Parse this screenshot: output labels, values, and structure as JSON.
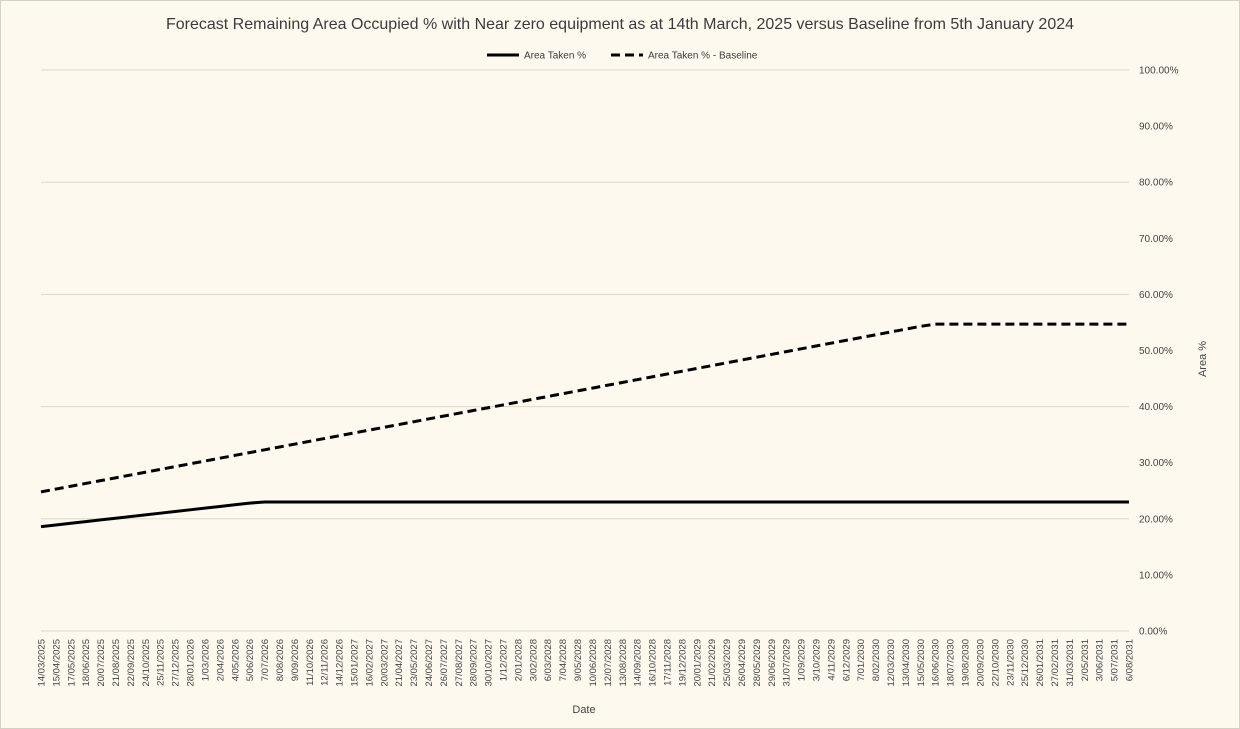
{
  "chart_data": {
    "type": "line",
    "title": "Forecast Remaining Area Occupied % with Near zero equipment as at 14th March, 2025 versus Baseline from 5th January 2024",
    "xlabel": "Date",
    "ylabel": "Area %",
    "ylim": [
      0,
      100
    ],
    "yticks": [
      "0.00%",
      "10.00%",
      "20.00%",
      "30.00%",
      "40.00%",
      "50.00%",
      "60.00%",
      "70.00%",
      "80.00%",
      "90.00%",
      "100.00%"
    ],
    "grid": true,
    "legend_position": "top",
    "categories": [
      "14/03/2025",
      "15/04/2025",
      "17/05/2025",
      "18/06/2025",
      "20/07/2025",
      "21/08/2025",
      "22/09/2025",
      "24/10/2025",
      "25/11/2025",
      "27/12/2025",
      "28/01/2026",
      "1/03/2026",
      "2/04/2026",
      "4/05/2026",
      "5/06/2026",
      "7/07/2026",
      "8/08/2026",
      "9/09/2026",
      "11/10/2026",
      "12/11/2026",
      "14/12/2026",
      "15/01/2027",
      "16/02/2027",
      "20/03/2027",
      "21/04/2027",
      "23/05/2027",
      "24/06/2027",
      "26/07/2027",
      "27/08/2027",
      "28/09/2027",
      "30/10/2027",
      "1/12/2027",
      "2/01/2028",
      "3/02/2028",
      "6/03/2028",
      "7/04/2028",
      "9/05/2028",
      "10/06/2028",
      "12/07/2028",
      "13/08/2028",
      "14/09/2028",
      "16/10/2028",
      "17/11/2028",
      "19/12/2028",
      "20/01/2029",
      "21/02/2029",
      "25/03/2029",
      "26/04/2029",
      "28/05/2029",
      "29/06/2029",
      "31/07/2029",
      "1/09/2029",
      "3/10/2029",
      "4/11/2029",
      "6/12/2029",
      "7/01/2030",
      "8/02/2030",
      "12/03/2030",
      "13/04/2030",
      "15/05/2030",
      "16/06/2030",
      "18/07/2030",
      "19/08/2030",
      "20/09/2030",
      "22/10/2030",
      "23/11/2030",
      "25/12/2030",
      "26/01/2031",
      "27/02/2031",
      "31/03/2031",
      "2/05/2031",
      "3/06/2031",
      "5/07/2031",
      "6/08/2031"
    ],
    "series": [
      {
        "name": "Area Taken %",
        "style": "solid",
        "color": "#000000",
        "values": [
          18.6,
          18.9,
          19.2,
          19.5,
          19.8,
          20.1,
          20.4,
          20.7,
          21.0,
          21.3,
          21.6,
          21.9,
          22.2,
          22.5,
          22.8,
          23.0,
          23.0,
          23.0,
          23.0,
          23.0,
          23.0,
          23.0,
          23.0,
          23.0,
          23.0,
          23.0,
          23.0,
          23.0,
          23.0,
          23.0,
          23.0,
          23.0,
          23.0,
          23.0,
          23.0,
          23.0,
          23.0,
          23.0,
          23.0,
          23.0,
          23.0,
          23.0,
          23.0,
          23.0,
          23.0,
          23.0,
          23.0,
          23.0,
          23.0,
          23.0,
          23.0,
          23.0,
          23.0,
          23.0,
          23.0,
          23.0,
          23.0,
          23.0,
          23.0,
          23.0,
          23.0,
          23.0,
          23.0,
          23.0,
          23.0,
          23.0,
          23.0,
          23.0,
          23.0,
          23.0,
          23.0,
          23.0,
          23.0,
          23.0
        ]
      },
      {
        "name": "Area Taken % - Baseline",
        "style": "dashed",
        "color": "#000000",
        "values": [
          24.8,
          25.3,
          25.8,
          26.3,
          26.8,
          27.3,
          27.8,
          28.3,
          28.8,
          29.3,
          29.8,
          30.3,
          30.8,
          31.3,
          31.8,
          32.3,
          32.8,
          33.3,
          33.8,
          34.3,
          34.8,
          35.3,
          35.8,
          36.3,
          36.8,
          37.3,
          37.8,
          38.3,
          38.8,
          39.3,
          39.8,
          40.3,
          40.8,
          41.3,
          41.8,
          42.3,
          42.8,
          43.3,
          43.8,
          44.3,
          44.8,
          45.3,
          45.8,
          46.3,
          46.8,
          47.3,
          47.8,
          48.3,
          48.8,
          49.3,
          49.8,
          50.3,
          50.8,
          51.3,
          51.8,
          52.3,
          52.8,
          53.3,
          53.8,
          54.3,
          54.7,
          54.7,
          54.7,
          54.7,
          54.7,
          54.7,
          54.7,
          54.7,
          54.7,
          54.7,
          54.7,
          54.7,
          54.7,
          54.7
        ]
      }
    ]
  }
}
